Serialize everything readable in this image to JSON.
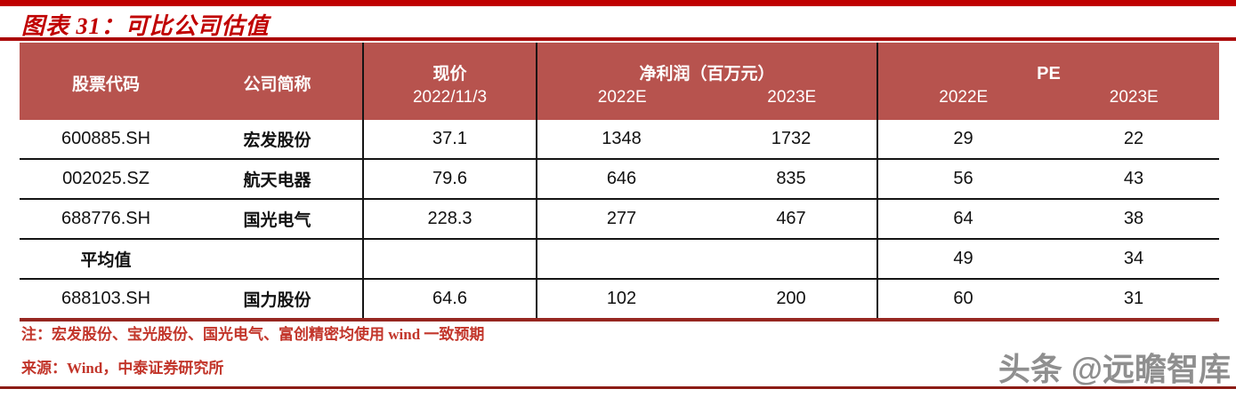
{
  "title": "图表 31：可比公司估值",
  "table": {
    "header": {
      "col_code": "股票代码",
      "col_name": "公司简称",
      "price_label": "现价",
      "price_date": "2022/11/3",
      "profit_label": "净利润（百万元）",
      "pe_label": "PE",
      "profit_year1": "2022E",
      "profit_year2": "2023E",
      "pe_year1": "2022E",
      "pe_year2": "2023E"
    },
    "rows": [
      {
        "code": "600885.SH",
        "name": "宏发股份",
        "price": "37.1",
        "profit_2022e": "1348",
        "profit_2023e": "1732",
        "pe_2022e": "29",
        "pe_2023e": "22"
      },
      {
        "code": "002025.SZ",
        "name": "航天电器",
        "price": "79.6",
        "profit_2022e": "646",
        "profit_2023e": "835",
        "pe_2022e": "56",
        "pe_2023e": "43"
      },
      {
        "code": "688776.SH",
        "name": "国光电气",
        "price": "228.3",
        "profit_2022e": "277",
        "profit_2023e": "467",
        "pe_2022e": "64",
        "pe_2023e": "38"
      },
      {
        "code": "平均值",
        "name": "",
        "price": "",
        "profit_2022e": "",
        "profit_2023e": "",
        "pe_2022e": "49",
        "pe_2023e": "34"
      },
      {
        "code": "688103.SH",
        "name": "国力股份",
        "price": "64.6",
        "profit_2022e": "102",
        "profit_2023e": "200",
        "pe_2022e": "60",
        "pe_2023e": "31"
      }
    ]
  },
  "notes": {
    "note1": "注：宏发股份、宝光股份、国光电气、富创精密均使用 wind 一致预期",
    "note2": "来源：Wind，中泰证券研究所"
  },
  "watermark": "头条 @远瞻智库",
  "colors": {
    "accent_red": "#c00000",
    "header_fill": "#b7534e",
    "header_text": "#ffffff",
    "table_bottom_border": "#962620",
    "row_line": "#141414",
    "note_red": "#c2352a",
    "watermark_gray": "#8f8f8f"
  }
}
